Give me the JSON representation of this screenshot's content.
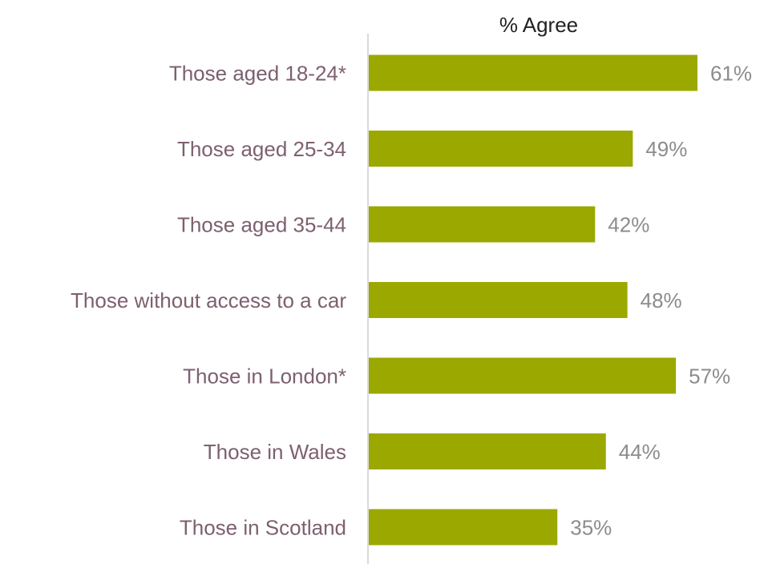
{
  "chart_data": {
    "type": "bar",
    "orientation": "horizontal",
    "title": "% Agree",
    "categories": [
      "Those aged 18-24*",
      "Those aged 25-34",
      "Those aged 35-44",
      "Those without access to a car",
      "Those in London*",
      "Those in Wales",
      "Those in Scotland"
    ],
    "values": [
      61,
      49,
      42,
      48,
      57,
      44,
      35
    ],
    "value_labels": [
      "61%",
      "49%",
      "42%",
      "48%",
      "57%",
      "44%",
      "35%"
    ],
    "unit": "%",
    "xlim": [
      0,
      70
    ],
    "grid": false,
    "legend": "none",
    "colors": {
      "bar": "#9aa800",
      "category_label": "#7d6070",
      "value_label": "#8c8c8c",
      "title": "#222222",
      "axis_line": "#d9d9d9"
    }
  }
}
